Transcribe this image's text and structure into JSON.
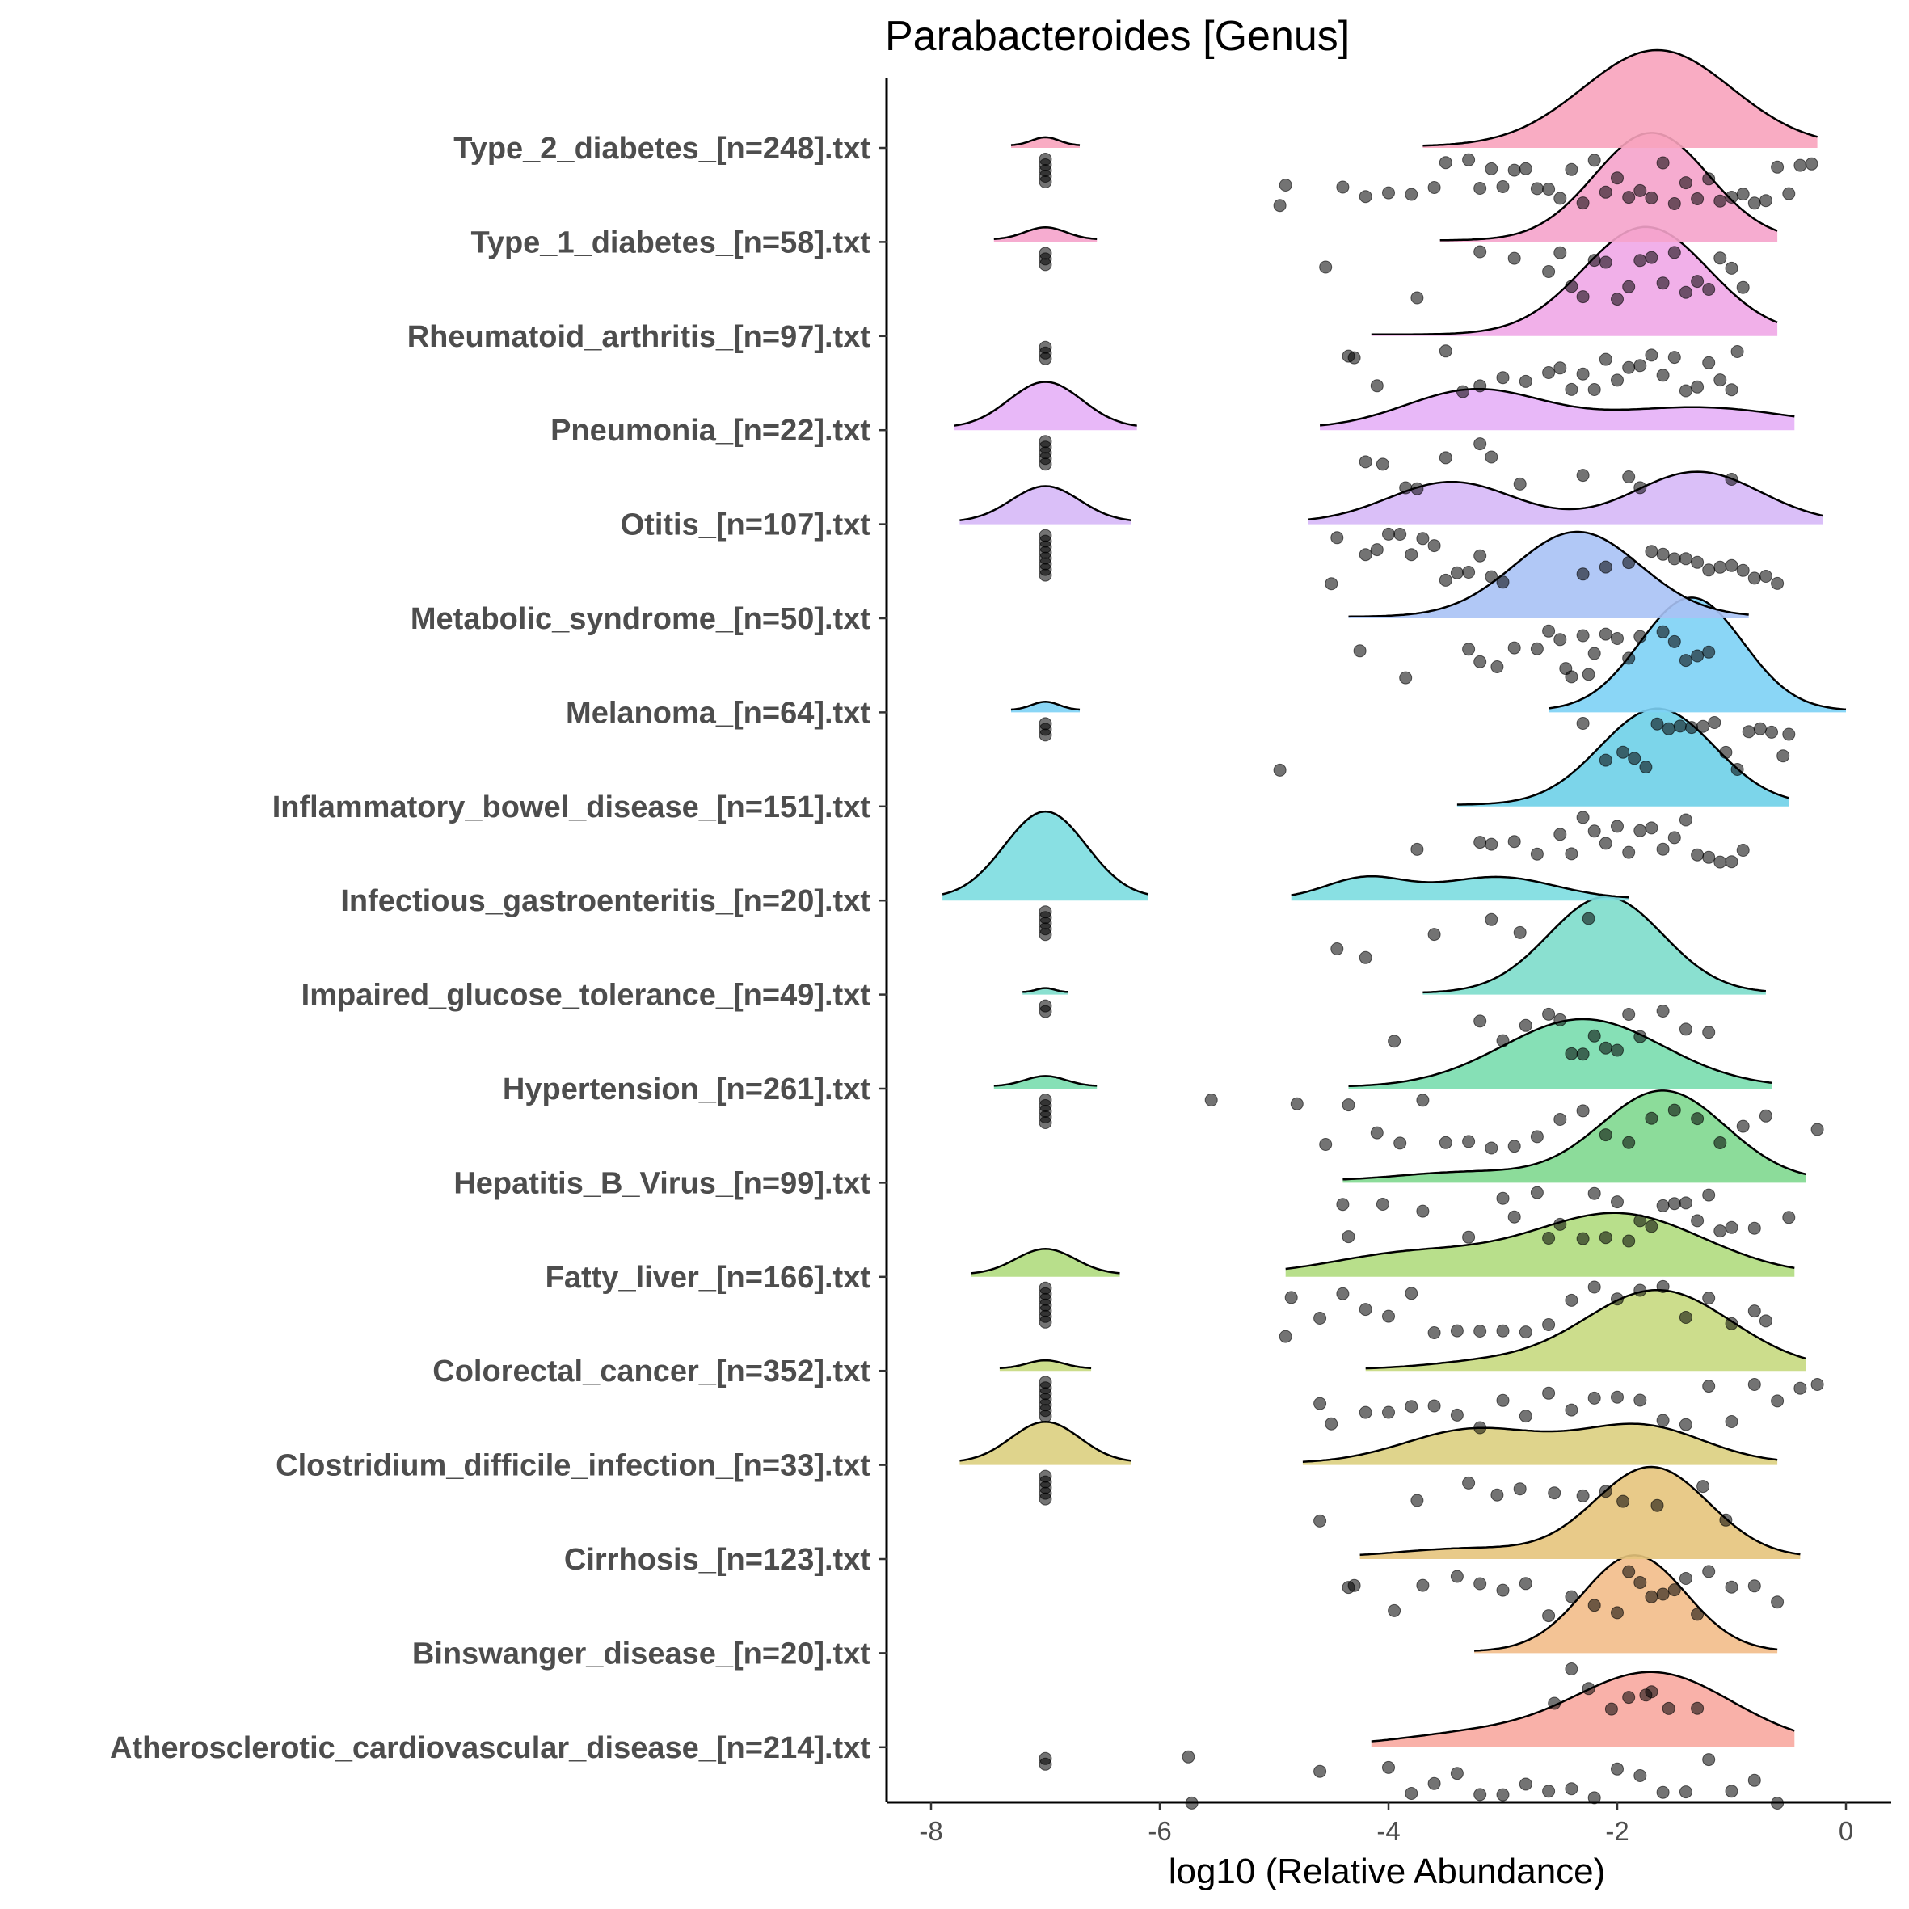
{
  "chart_data": {
    "type": "raincloud",
    "title": "Parabacteroides [Genus]",
    "xlabel": "log10 (Relative Abundance)",
    "ylabel": "",
    "xlim": [
      -8.4,
      0.4
    ],
    "xticks": [
      -8,
      -6,
      -4,
      -2,
      0
    ],
    "grid": false,
    "legend": "none",
    "groups": [
      {
        "label": "Type_2_diabetes_[n=248].txt",
        "color": "#F8A3BC",
        "zero": {
          "range": [
            -7.3,
            -6.7
          ],
          "peak": 0.08,
          "count": 5
        },
        "detected": {
          "range": [
            -3.7,
            -0.25
          ],
          "peak": 0.85,
          "comps": [
            {
              "m": -1.65,
              "s": 0.65,
              "w": 1
            }
          ],
          "points": [
            -4.95,
            -4.9,
            -4.4,
            -4.2,
            -4.0,
            -3.8,
            -3.6,
            -3.5,
            -3.3,
            -3.2,
            -3.1,
            -3.0,
            -2.9,
            -2.8,
            -2.7,
            -2.6,
            -2.5,
            -2.4,
            -2.3,
            -2.2,
            -2.1,
            -2.0,
            -1.9,
            -1.8,
            -1.7,
            -1.6,
            -1.5,
            -1.4,
            -1.3,
            -1.2,
            -1.1,
            -1.0,
            -0.9,
            -0.8,
            -0.7,
            -0.6,
            -0.5,
            -0.4,
            -0.3
          ]
        }
      },
      {
        "label": "Type_1_diabetes_[n=58].txt",
        "color": "#F5A3CB",
        "zero": {
          "range": [
            -7.45,
            -6.55
          ],
          "peak": 0.12,
          "count": 3
        },
        "detected": {
          "range": [
            -3.55,
            -0.6
          ],
          "peak": 0.95,
          "comps": [
            {
              "m": -1.7,
              "s": 0.5,
              "w": 1
            }
          ],
          "points": [
            -4.55,
            -3.75,
            -3.2,
            -2.9,
            -2.6,
            -2.5,
            -2.4,
            -2.3,
            -2.2,
            -2.1,
            -2.0,
            -1.9,
            -1.8,
            -1.7,
            -1.6,
            -1.5,
            -1.4,
            -1.3,
            -1.2,
            -1.1,
            -1.0,
            -0.9
          ]
        }
      },
      {
        "label": "Rheumatoid_arthritis_[n=97].txt",
        "color": "#F0A7E7",
        "zero": {
          "range": [
            -7.0,
            -7.0
          ],
          "peak": 0,
          "count": 3
        },
        "detected": {
          "range": [
            -4.15,
            -0.6
          ],
          "peak": 0.95,
          "comps": [
            {
              "m": -1.75,
              "s": 0.55,
              "w": 1
            }
          ],
          "points": [
            -4.35,
            -4.3,
            -4.1,
            -3.5,
            -3.35,
            -3.2,
            -3.0,
            -2.8,
            -2.6,
            -2.5,
            -2.4,
            -2.3,
            -2.2,
            -2.1,
            -2.0,
            -1.9,
            -1.8,
            -1.7,
            -1.6,
            -1.5,
            -1.4,
            -1.3,
            -1.2,
            -1.1,
            -1.0,
            -0.95
          ]
        }
      },
      {
        "label": "Pneumonia_[n=22].txt",
        "color": "#E6B0F7",
        "zero": {
          "range": [
            -7.8,
            -6.2
          ],
          "peak": 0.45,
          "count": 5
        },
        "detected": {
          "range": [
            -4.6,
            -0.45
          ],
          "peak": 0.35,
          "comps": [
            {
              "m": -3.25,
              "s": 0.6,
              "w": 1
            },
            {
              "m": -1.3,
              "s": 0.8,
              "w": 0.55
            }
          ],
          "points": [
            -4.2,
            -4.05,
            -3.85,
            -3.75,
            -3.5,
            -3.2,
            -3.1,
            -2.85,
            -2.3,
            -1.9,
            -1.8,
            -1.0
          ]
        }
      },
      {
        "label": "Otitis_[n=107].txt",
        "color": "#D6B8F7",
        "zero": {
          "range": [
            -7.75,
            -6.25
          ],
          "peak": 0.35,
          "count": 8
        },
        "detected": {
          "range": [
            -4.7,
            -0.2
          ],
          "peak": 0.45,
          "comps": [
            {
              "m": -3.45,
              "s": 0.55,
              "w": 1
            },
            {
              "m": -1.3,
              "s": 0.55,
              "w": 1.25
            }
          ],
          "points": [
            -4.5,
            -4.45,
            -4.2,
            -4.1,
            -4.0,
            -3.9,
            -3.8,
            -3.7,
            -3.6,
            -3.5,
            -3.4,
            -3.3,
            -3.2,
            -3.1,
            -3.0,
            -2.3,
            -2.1,
            -1.9,
            -1.7,
            -1.6,
            -1.5,
            -1.4,
            -1.3,
            -1.2,
            -1.1,
            -1.0,
            -0.9,
            -0.8,
            -0.7,
            -0.6
          ]
        }
      },
      {
        "label": "Metabolic_syndrome_[n=50].txt",
        "color": "#A9C2F5",
        "zero": {
          "range": [
            -7.0,
            -7.0
          ],
          "peak": 0,
          "count": 0
        },
        "detected": {
          "range": [
            -4.35,
            -0.85
          ],
          "peak": 0.75,
          "comps": [
            {
              "m": -2.35,
              "s": 0.55,
              "w": 1
            }
          ],
          "points": [
            -4.25,
            -3.85,
            -3.3,
            -3.2,
            -3.05,
            -2.9,
            -2.7,
            -2.6,
            -2.5,
            -2.45,
            -2.4,
            -2.3,
            -2.25,
            -2.2,
            -2.1,
            -2.0,
            -1.9,
            -1.8,
            -1.6,
            -1.5,
            -1.4,
            -1.3,
            -1.2
          ]
        }
      },
      {
        "label": "Melanoma_[n=64].txt",
        "color": "#7DD1F5",
        "zero": {
          "range": [
            -7.3,
            -6.7
          ],
          "peak": 0.08,
          "count": 3
        },
        "detected": {
          "range": [
            -2.6,
            0.0
          ],
          "peak": 1.0,
          "comps": [
            {
              "m": -1.35,
              "s": 0.45,
              "w": 1
            }
          ],
          "points": [
            -4.95,
            -2.3,
            -2.1,
            -1.95,
            -1.85,
            -1.75,
            -1.65,
            -1.55,
            -1.45,
            -1.35,
            -1.25,
            -1.15,
            -1.05,
            -0.95,
            -0.85,
            -0.75,
            -0.65,
            -0.55,
            -0.5
          ]
        }
      },
      {
        "label": "Inflammatory_bowel_disease_[n=151].txt",
        "color": "#6ED0E8",
        "zero": {
          "range": [
            -7.0,
            -7.0
          ],
          "peak": 0,
          "count": 0
        },
        "detected": {
          "range": [
            -3.4,
            -0.5
          ],
          "peak": 0.85,
          "comps": [
            {
              "m": -1.65,
              "s": 0.5,
              "w": 1
            }
          ],
          "points": [
            -3.75,
            -3.2,
            -3.1,
            -2.9,
            -2.7,
            -2.5,
            -2.4,
            -2.3,
            -2.2,
            -2.1,
            -2.0,
            -1.9,
            -1.8,
            -1.7,
            -1.6,
            -1.5,
            -1.4,
            -1.3,
            -1.2,
            -1.1,
            -1.0,
            -0.9
          ]
        }
      },
      {
        "label": "Infectious_gastroenteritis_[n=20].txt",
        "color": "#7CDDE0",
        "zero": {
          "range": [
            -7.9,
            -6.1
          ],
          "peak": 0.85,
          "count": 5
        },
        "detected": {
          "range": [
            -4.85,
            -1.9
          ],
          "peak": 0.2,
          "comps": [
            {
              "m": -4.2,
              "s": 0.35,
              "w": 1
            },
            {
              "m": -3.05,
              "s": 0.5,
              "w": 1.05
            }
          ],
          "points": [
            -4.45,
            -4.2,
            -3.6,
            -3.1,
            -2.85,
            -2.25
          ]
        }
      },
      {
        "label": "Impaired_glucose_tolerance_[n=49].txt",
        "color": "#7DDDCB",
        "zero": {
          "range": [
            -7.2,
            -6.8
          ],
          "peak": 0.04,
          "count": 2
        },
        "detected": {
          "range": [
            -3.7,
            -0.7
          ],
          "peak": 0.85,
          "comps": [
            {
              "m": -2.1,
              "s": 0.5,
              "w": 1
            }
          ],
          "points": [
            -3.95,
            -3.2,
            -3.0,
            -2.8,
            -2.6,
            -2.5,
            -2.4,
            -2.3,
            -2.2,
            -2.1,
            -2.0,
            -1.9,
            -1.8,
            -1.6,
            -1.4,
            -1.2
          ]
        }
      },
      {
        "label": "Hypertension_[n=261].txt",
        "color": "#79DDAE",
        "zero": {
          "range": [
            -7.45,
            -6.55
          ],
          "peak": 0.1,
          "count": 5
        },
        "detected": {
          "range": [
            -4.35,
            -0.65
          ],
          "peak": 0.6,
          "comps": [
            {
              "m": -2.3,
              "s": 0.7,
              "w": 1
            }
          ],
          "points": [
            -5.55,
            -4.8,
            -4.55,
            -4.35,
            -4.1,
            -3.9,
            -3.7,
            -3.5,
            -3.3,
            -3.1,
            -2.9,
            -2.7,
            -2.5,
            -2.3,
            -2.1,
            -1.9,
            -1.7,
            -1.5,
            -1.3,
            -1.1,
            -0.9,
            -0.7,
            -0.25
          ]
        }
      },
      {
        "label": "Hepatitis_B_Virus_[n=99].txt",
        "color": "#7FD88F",
        "zero": {
          "range": [
            -7.0,
            -7.0
          ],
          "peak": 0,
          "count": 0
        },
        "detected": {
          "range": [
            -4.4,
            -0.35
          ],
          "peak": 0.8,
          "comps": [
            {
              "m": -1.6,
              "s": 0.55,
              "w": 1
            },
            {
              "m": -3.3,
              "s": 0.6,
              "w": 0.1
            }
          ],
          "points": [
            -4.4,
            -4.35,
            -4.05,
            -3.7,
            -3.3,
            -3.0,
            -2.9,
            -2.7,
            -2.6,
            -2.5,
            -2.3,
            -2.2,
            -2.1,
            -2.0,
            -1.9,
            -1.8,
            -1.7,
            -1.6,
            -1.5,
            -1.4,
            -1.3,
            -1.2,
            -1.1,
            -1.0,
            -0.8,
            -0.5
          ]
        }
      },
      {
        "label": "Fatty_liver_[n=166].txt",
        "color": "#B0DB7E",
        "zero": {
          "range": [
            -7.65,
            -6.35
          ],
          "peak": 0.25,
          "count": 7
        },
        "detected": {
          "range": [
            -4.9,
            -0.45
          ],
          "peak": 0.55,
          "comps": [
            {
              "m": -2.0,
              "s": 0.75,
              "w": 1
            },
            {
              "m": -3.8,
              "s": 0.7,
              "w": 0.35
            }
          ],
          "points": [
            -4.9,
            -4.85,
            -4.6,
            -4.4,
            -4.2,
            -4.0,
            -3.8,
            -3.6,
            -3.4,
            -3.2,
            -3.0,
            -2.8,
            -2.6,
            -2.4,
            -2.2,
            -2.0,
            -1.8,
            -1.6,
            -1.4,
            -1.2,
            -1.0,
            -0.8,
            -0.7
          ]
        }
      },
      {
        "label": "Colorectal_cancer_[n=352].txt",
        "color": "#C7D97F",
        "zero": {
          "range": [
            -7.4,
            -6.6
          ],
          "peak": 0.08,
          "count": 7
        },
        "detected": {
          "range": [
            -4.2,
            -0.35
          ],
          "peak": 0.7,
          "comps": [
            {
              "m": -1.65,
              "s": 0.65,
              "w": 1
            },
            {
              "m": -3.2,
              "s": 0.5,
              "w": 0.08
            }
          ],
          "points": [
            -4.6,
            -4.5,
            -4.2,
            -4.0,
            -3.8,
            -3.6,
            -3.4,
            -3.2,
            -3.0,
            -2.8,
            -2.6,
            -2.4,
            -2.2,
            -2.0,
            -1.8,
            -1.6,
            -1.4,
            -1.2,
            -1.0,
            -0.8,
            -0.6,
            -0.4,
            -0.25
          ]
        }
      },
      {
        "label": "Clostridium_difficile_infection_[n=33].txt",
        "color": "#DCCF7F",
        "zero": {
          "range": [
            -7.75,
            -6.25
          ],
          "peak": 0.4,
          "count": 5
        },
        "detected": {
          "range": [
            -4.75,
            -0.6
          ],
          "peak": 0.35,
          "comps": [
            {
              "m": -3.25,
              "s": 0.6,
              "w": 1
            },
            {
              "m": -1.8,
              "s": 0.55,
              "w": 1.1
            }
          ],
          "points": [
            -4.6,
            -3.75,
            -3.3,
            -3.05,
            -2.85,
            -2.55,
            -2.3,
            -2.1,
            -1.95,
            -1.65,
            -1.25,
            -1.05
          ]
        }
      },
      {
        "label": "Cirrhosis_[n=123].txt",
        "color": "#E6C47C",
        "zero": {
          "range": [
            -7.0,
            -7.0
          ],
          "peak": 0,
          "count": 0
        },
        "detected": {
          "range": [
            -4.25,
            -0.4
          ],
          "peak": 0.8,
          "comps": [
            {
              "m": -1.7,
              "s": 0.5,
              "w": 1
            },
            {
              "m": -3.3,
              "s": 0.6,
              "w": 0.1
            }
          ],
          "points": [
            -4.35,
            -4.3,
            -3.95,
            -3.7,
            -3.4,
            -3.2,
            -3.0,
            -2.8,
            -2.6,
            -2.4,
            -2.2,
            -2.0,
            -1.9,
            -1.8,
            -1.7,
            -1.6,
            -1.5,
            -1.4,
            -1.3,
            -1.2,
            -1.0,
            -0.8,
            -0.6
          ]
        }
      },
      {
        "label": "Binswanger_disease_[n=20].txt",
        "color": "#F2BC8A",
        "zero": {
          "range": [
            -7.0,
            -7.0
          ],
          "peak": 0,
          "count": 0
        },
        "detected": {
          "range": [
            -3.25,
            -0.6
          ],
          "peak": 0.85,
          "comps": [
            {
              "m": -1.85,
              "s": 0.45,
              "w": 1
            }
          ],
          "points": [
            -2.55,
            -2.4,
            -2.25,
            -2.05,
            -1.9,
            -1.75,
            -1.7,
            -1.55,
            -1.3
          ]
        }
      },
      {
        "label": "Atherosclerotic_cardiovascular_disease_[n=214].txt",
        "color": "#F8A8A0",
        "zero": {
          "range": [
            -7.0,
            -7.0
          ],
          "peak": 0,
          "count": 2
        },
        "detected": {
          "range": [
            -4.15,
            -0.45
          ],
          "peak": 0.65,
          "comps": [
            {
              "m": -1.7,
              "s": 0.7,
              "w": 1
            },
            {
              "m": -3.3,
              "s": 0.6,
              "w": 0.15
            }
          ],
          "points": [
            -5.75,
            -5.72,
            -4.6,
            -4.0,
            -3.8,
            -3.6,
            -3.4,
            -3.2,
            -3.0,
            -2.8,
            -2.6,
            -2.4,
            -2.2,
            -2.0,
            -1.8,
            -1.6,
            -1.4,
            -1.2,
            -1.0,
            -0.8,
            -0.6
          ]
        }
      }
    ]
  }
}
